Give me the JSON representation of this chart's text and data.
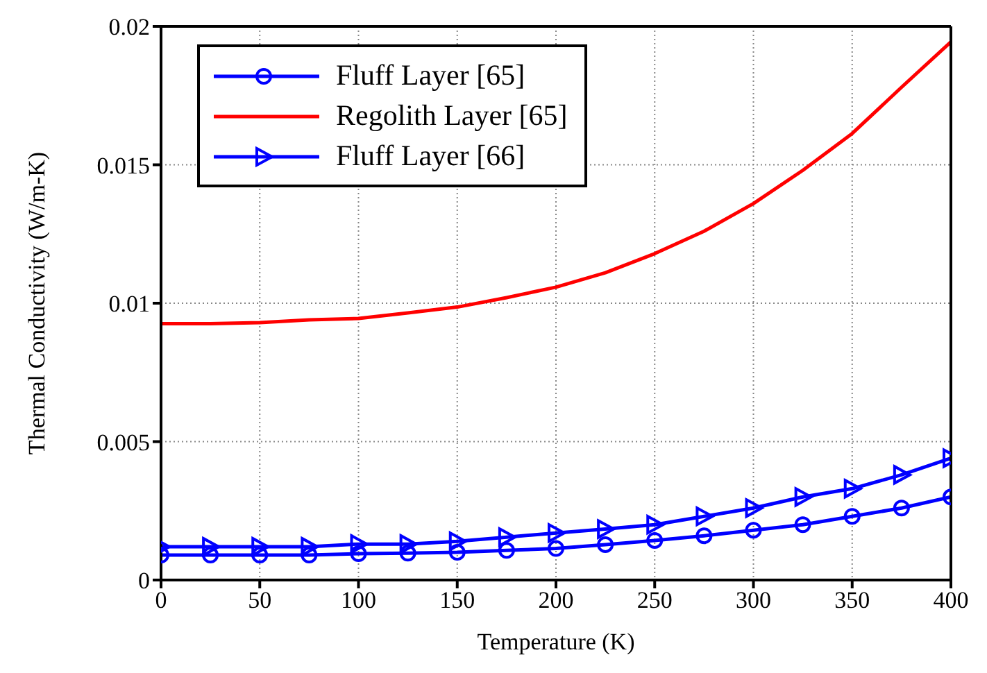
{
  "chart_data": {
    "type": "line",
    "xlabel": "Temperature (K)",
    "ylabel": "Thermal Conductivity (W/m-K)",
    "x": [
      0,
      25,
      50,
      75,
      100,
      125,
      150,
      175,
      200,
      225,
      250,
      275,
      300,
      325,
      350,
      375,
      400
    ],
    "series": [
      {
        "name": "Fluff Layer [65]",
        "color": "#0000ff",
        "marker": "circle",
        "values": [
          0.0009,
          0.0009,
          0.0009,
          0.0009,
          0.00095,
          0.00097,
          0.001,
          0.00107,
          0.00114,
          0.00128,
          0.00143,
          0.0016,
          0.0018,
          0.002,
          0.0023,
          0.0026,
          0.003
        ]
      },
      {
        "name": "Regolith Layer [65]",
        "color": "#ff0000",
        "marker": "none",
        "values": [
          0.00926,
          0.00926,
          0.0093,
          0.0094,
          0.00945,
          0.00965,
          0.00986,
          0.0102,
          0.01058,
          0.0111,
          0.01179,
          0.0126,
          0.0136,
          0.0148,
          0.01613,
          0.0178,
          0.01944
        ]
      },
      {
        "name": "Fluff Layer [66]",
        "color": "#0000ff",
        "marker": "triangle",
        "values": [
          0.0012,
          0.0012,
          0.0012,
          0.0012,
          0.0013,
          0.0013,
          0.0014,
          0.00155,
          0.0017,
          0.00184,
          0.002,
          0.0023,
          0.0026,
          0.003,
          0.0033,
          0.0038,
          0.0044
        ]
      }
    ],
    "xlim": [
      0,
      400
    ],
    "xticks": [
      0,
      50,
      100,
      150,
      200,
      250,
      300,
      350,
      400
    ],
    "ylim": [
      0,
      0.02
    ],
    "yticks": [
      0,
      0.005,
      0.01,
      0.015,
      0.02
    ],
    "grid": true,
    "legend": "top left"
  }
}
